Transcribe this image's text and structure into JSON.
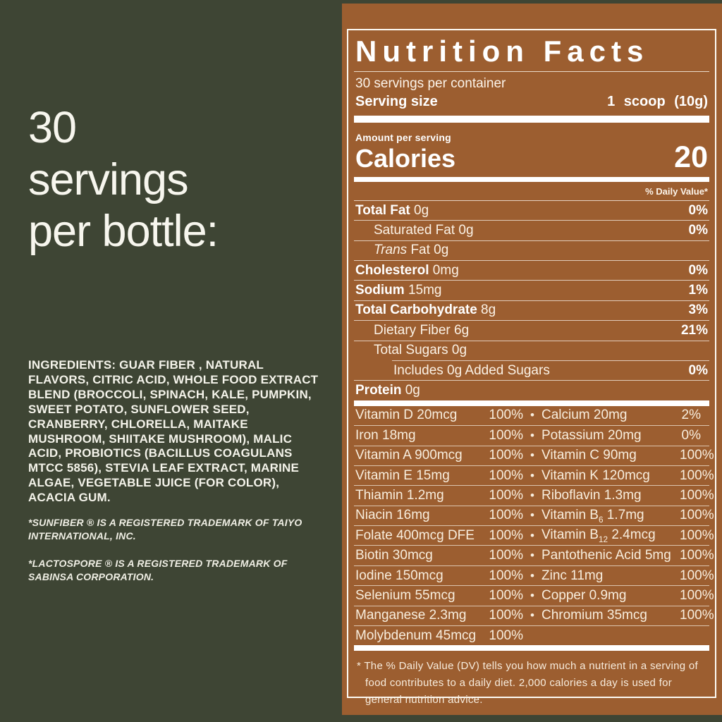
{
  "left_panel": {
    "heading_lines": [
      "30",
      "servings",
      "per bottle:"
    ],
    "ingredients": "INGREDIENTS: GUAR FIBER , NATURAL FLAVORS, CITRIC ACID, WHOLE FOOD EXTRACT BLEND (BROCCOLI, SPINACH, KALE, PUMPKIN, SWEET POTATO, SUNFLOWER SEED, CRANBERRY, CHLORELLA, MAITAKE MUSHROOM, SHIITAKE MUSHROOM), MALIC ACID, PROBIOTICS (BACILLUS COAGULANS MTCC 5856), STEVIA LEAF EXTRACT, MARINE ALGAE, VEGETABLE JUICE (FOR COLOR), ACACIA GUM.",
    "trademark_notes": [
      "*SUNFIBER ® IS A REGISTERED TRADEMARK OF TAIYO INTERNATIONAL, INC.",
      "*LACTOSPORE ® IS A REGISTERED TRADEMARK OF SABINSA CORPORATION."
    ]
  },
  "label": {
    "title": "Nutrition Facts",
    "servings_per_container": "30 servings per container",
    "serving_size_label": "Serving size",
    "serving_size_value": "1 scoop (10g)",
    "amount_per_serving": "Amount per serving",
    "calories_label": "Calories",
    "calories_value": "20",
    "daily_value_header": "% Daily Value*",
    "nutrient_rows": [
      {
        "bold": "Total Fat",
        "rest": " 0g",
        "dv": "0%",
        "indent": 0
      },
      {
        "bold": "",
        "rest": "Saturated Fat 0g",
        "dv": "0%",
        "indent": 1
      },
      {
        "bold": "",
        "italic": "Trans",
        "rest": " Fat 0g",
        "dv": "",
        "indent": 1
      },
      {
        "bold": "Cholesterol",
        "rest": " 0mg",
        "dv": "0%",
        "indent": 0
      },
      {
        "bold": "Sodium",
        "rest": " 15mg",
        "dv": "1%",
        "indent": 0
      },
      {
        "bold": "Total Carbohydrate",
        "rest": " 8g",
        "dv": "3%",
        "indent": 0
      },
      {
        "bold": "",
        "rest": "Dietary Fiber 6g",
        "dv": "21%",
        "indent": 1
      },
      {
        "bold": "",
        "rest": "Total Sugars 0g",
        "dv": "",
        "indent": 1,
        "no_line_below": true
      },
      {
        "bold": "",
        "rest": "Includes 0g Added Sugars",
        "dv": "0%",
        "indent": 2,
        "partial_line_above": true
      },
      {
        "bold": "Protein",
        "rest": " 0g",
        "dv": "",
        "indent": 0,
        "no_line_below": true
      }
    ],
    "micronutrient_rows": [
      {
        "l": "Vitamin D 20mcg",
        "ldv": "100%",
        "r": "Calcium 20mg",
        "rdv": "2%"
      },
      {
        "l": "Iron 18mg",
        "ldv": "100%",
        "r": "Potassium 20mg",
        "rdv": "0%"
      },
      {
        "l": "Vitamin A 900mcg",
        "ldv": "100%",
        "r": "Vitamin C 90mg",
        "rdv": "100%"
      },
      {
        "l": "Vitamin E 15mg",
        "ldv": "100%",
        "r": "Vitamin K 120mcg",
        "rdv": "100%"
      },
      {
        "l": "Thiamin 1.2mg",
        "ldv": "100%",
        "r": "Riboflavin 1.3mg",
        "rdv": "100%"
      },
      {
        "l": "Niacin 16mg",
        "ldv": "100%",
        "r": "Vitamin B~6~ 1.7mg",
        "rdv": "100%"
      },
      {
        "l": "Folate 400mcg DFE",
        "ldv": "100%",
        "r": "Vitamin B~12~ 2.4mcg",
        "rdv": "100%"
      },
      {
        "l": "Biotin 30mcg",
        "ldv": "100%",
        "r": "Pantothenic Acid 5mg",
        "rdv": "100%"
      },
      {
        "l": "Iodine 150mcg",
        "ldv": "100%",
        "r": "Zinc 11mg",
        "rdv": "100%"
      },
      {
        "l": "Selenium 55mcg",
        "ldv": "100%",
        "r": "Copper 0.9mg",
        "rdv": "100%"
      },
      {
        "l": "Manganese 2.3mg",
        "ldv": "100%",
        "r": "Chromium 35mcg",
        "rdv": "100%"
      },
      {
        "l": "Molybdenum 45mcg",
        "ldv": "100%",
        "r": "",
        "rdv": ""
      }
    ],
    "footnote": "* The % Daily Value (DV) tells you how much a nutrient in a serving of food contributes to a daily diet. 2,000 calories a day is used for general nutrition advice."
  },
  "colors": {
    "background_green": "#3e4534",
    "panel_brown": "#9c5e30",
    "text_cream": "#f8eede",
    "rule_white": "#fdfbf5"
  }
}
